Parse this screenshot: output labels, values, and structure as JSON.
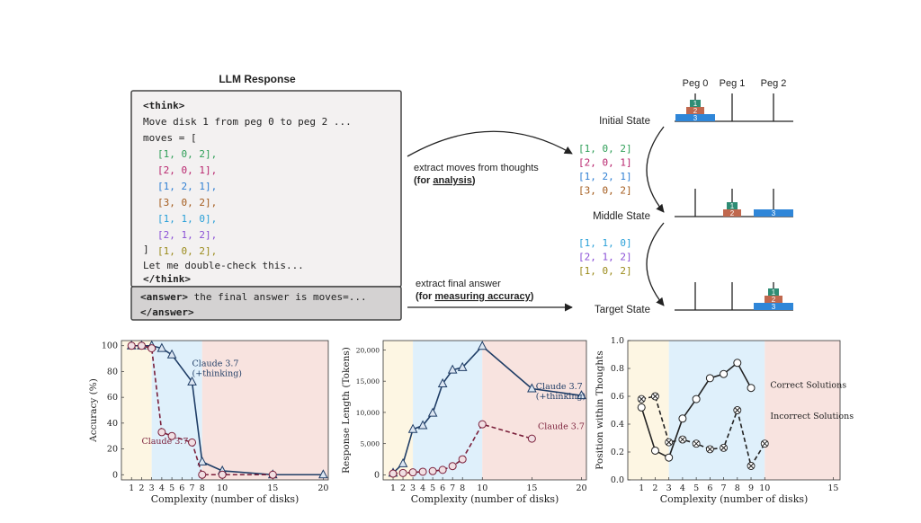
{
  "colors": {
    "green": "#2e9e57",
    "magenta": "#b8246d",
    "blue": "#2f7fd3",
    "brown": "#a35a1b",
    "cyan": "#2aa0d8",
    "purple": "#8a4fd6",
    "olive": "#9a8a1a",
    "navy": "#1f3d66",
    "maroon": "#7a1f3a",
    "bg_yellow": "#fdf6e3",
    "bg_blue": "#dff0fb",
    "bg_pink": "#f8e3df",
    "disk1": "#2e8c74",
    "disk2": "#c0684e",
    "disk3": "#2f86d8"
  },
  "llm_panel": {
    "title": "LLM Response",
    "think_open": "<think>",
    "move_line": "Move disk 1 from peg 0 to peg 2 ...",
    "moves_open": "moves = [",
    "moves": [
      {
        "text": "[1, 0, 2],",
        "color": "green"
      },
      {
        "text": "[2, 0, 1],",
        "color": "magenta"
      },
      {
        "text": "[1, 2, 1],",
        "color": "blue"
      },
      {
        "text": "[3, 0, 2],",
        "color": "brown"
      },
      {
        "text": "[1, 1, 0],",
        "color": "cyan"
      },
      {
        "text": "[2, 1, 2],",
        "color": "purple"
      },
      {
        "text": "[1, 0, 2],",
        "color": "olive"
      }
    ],
    "moves_close": "]",
    "double_check": "Let me double-check this...",
    "think_close": "</think>",
    "answer_open": "<answer>",
    "answer_text": " the final answer is moves=...",
    "answer_close": "</answer>"
  },
  "arrows": {
    "extract_moves": "extract moves  from thoughts",
    "for_prefix": "(for ",
    "analysis": "analysis",
    "for_suffix": ")",
    "extract_final": "extract final answer",
    "measuring": "measuring accuracy"
  },
  "hanoi": {
    "peg_labels": [
      "Peg 0",
      "Peg 1",
      "Peg 2"
    ],
    "states": [
      {
        "label": "Initial State"
      },
      {
        "label": "Middle State"
      },
      {
        "label": "Target State"
      }
    ],
    "disk_labels": [
      "1",
      "2",
      "3"
    ],
    "moves_group_1": [
      {
        "text": "[1, 0, 2]",
        "color": "green"
      },
      {
        "text": "[2, 0, 1]",
        "color": "magenta"
      },
      {
        "text": "[1, 2, 1]",
        "color": "blue"
      },
      {
        "text": "[3, 0, 2]",
        "color": "brown"
      }
    ],
    "moves_group_2": [
      {
        "text": "[1, 1, 0]",
        "color": "cyan"
      },
      {
        "text": "[2, 1, 2]",
        "color": "purple"
      },
      {
        "text": "[1, 0, 2]",
        "color": "olive"
      }
    ]
  },
  "chart_data": [
    {
      "type": "line",
      "xlabel": "Complexity (number of disks)",
      "ylabel": "Accuracy (%)",
      "xlim": [
        0,
        20.5
      ],
      "ylim": [
        -4,
        104
      ],
      "xticks": [
        1,
        2,
        3,
        4,
        5,
        6,
        7,
        8,
        10,
        15,
        20
      ],
      "yticks": [
        0,
        20,
        40,
        60,
        80,
        100
      ],
      "regions": [
        [
          0,
          3,
          "bg_yellow"
        ],
        [
          3,
          8,
          "bg_blue"
        ],
        [
          8,
          20.5,
          "bg_pink"
        ]
      ],
      "series": [
        {
          "name": "Claude 3.7 (+thinking)",
          "label_lines": [
            "Claude 3.7",
            "(+thinking)"
          ],
          "label_at": [
            7.0,
            84
          ],
          "marker": "triangle",
          "dashed": false,
          "color": "navy",
          "x": [
            1,
            2,
            3,
            4,
            5,
            7,
            8,
            10,
            15,
            20
          ],
          "y": [
            100,
            100,
            100,
            98,
            93,
            72,
            10,
            3,
            0,
            0
          ]
        },
        {
          "name": "Claude 3.7",
          "label_lines": [
            "Claude 3.7"
          ],
          "label_at": [
            2.0,
            24
          ],
          "marker": "circle",
          "dashed": true,
          "color": "maroon",
          "x": [
            1,
            2,
            3,
            4,
            5,
            7,
            8,
            10,
            15
          ],
          "y": [
            100,
            100,
            98,
            33,
            30,
            25,
            0,
            0,
            0
          ]
        }
      ]
    },
    {
      "type": "line",
      "xlabel": "Complexity (number of disks)",
      "ylabel": "Response Length (Tokens)",
      "xlim": [
        0,
        20.5
      ],
      "ylim": [
        -800,
        21500
      ],
      "xticks": [
        1,
        2,
        3,
        4,
        5,
        6,
        7,
        8,
        10,
        15,
        20
      ],
      "yticks": [
        0,
        5000,
        10000,
        15000,
        20000
      ],
      "ytick_labels": [
        "0",
        "5,000",
        "10,000",
        "15,000",
        "20,000"
      ],
      "regions": [
        [
          0,
          3,
          "bg_yellow"
        ],
        [
          3,
          10,
          "bg_blue"
        ],
        [
          10,
          20.5,
          "bg_pink"
        ]
      ],
      "series": [
        {
          "name": "Claude 3.7 (+thinking)",
          "label_lines": [
            "Claude 3.7",
            "(+thinking)"
          ],
          "label_at": [
            15.4,
            13700
          ],
          "marker": "triangle",
          "dashed": false,
          "color": "navy",
          "x": [
            1,
            2,
            3,
            4,
            5,
            6,
            7,
            8,
            10,
            15,
            20
          ],
          "y": [
            300,
            1800,
            7300,
            7900,
            9900,
            14600,
            16800,
            17200,
            20600,
            13800,
            12700
          ]
        },
        {
          "name": "Claude 3.7",
          "label_lines": [
            "Claude 3.7"
          ],
          "label_at": [
            15.6,
            7300
          ],
          "marker": "circle",
          "dashed": true,
          "color": "maroon",
          "x": [
            1,
            2,
            3,
            4,
            5,
            6,
            7,
            8,
            10,
            15
          ],
          "y": [
            200,
            300,
            400,
            500,
            600,
            800,
            1400,
            2500,
            8100,
            5800
          ]
        }
      ]
    },
    {
      "type": "line",
      "xlabel": "Complexity (number of disks)",
      "ylabel": "Position within Thoughts",
      "xlim": [
        0,
        15.5
      ],
      "ylim": [
        0,
        1.0
      ],
      "xticks": [
        1,
        2,
        3,
        4,
        5,
        6,
        7,
        8,
        9,
        10,
        15
      ],
      "yticks": [
        0,
        0.2,
        0.4,
        0.6,
        0.8,
        1.0
      ],
      "ytick_labels": [
        "0.0",
        "0.2",
        "0.4",
        "0.6",
        "0.8",
        "1.0"
      ],
      "regions": [
        [
          0,
          3,
          "bg_yellow"
        ],
        [
          3,
          10,
          "bg_blue"
        ],
        [
          10,
          15.5,
          "bg_pink"
        ]
      ],
      "series": [
        {
          "name": "Correct Solutions",
          "label_lines": [
            "Correct Solutions"
          ],
          "label_at": [
            10.4,
            0.66
          ],
          "marker": "circle",
          "dashed": false,
          "color": "#222222",
          "x": [
            1,
            2,
            3,
            4,
            5,
            6,
            7,
            8,
            9
          ],
          "y": [
            0.52,
            0.21,
            0.16,
            0.44,
            0.58,
            0.73,
            0.76,
            0.84,
            0.66
          ]
        },
        {
          "name": "Incorrect Solutions",
          "label_lines": [
            "Incorrect Solutions"
          ],
          "label_at": [
            10.4,
            0.44
          ],
          "marker": "x",
          "dashed": true,
          "color": "#222222",
          "x": [
            1,
            2,
            3,
            4,
            5,
            6,
            7,
            8,
            9,
            10
          ],
          "y": [
            0.58,
            0.6,
            0.27,
            0.29,
            0.26,
            0.22,
            0.23,
            0.5,
            0.1,
            0.26
          ]
        }
      ]
    }
  ]
}
